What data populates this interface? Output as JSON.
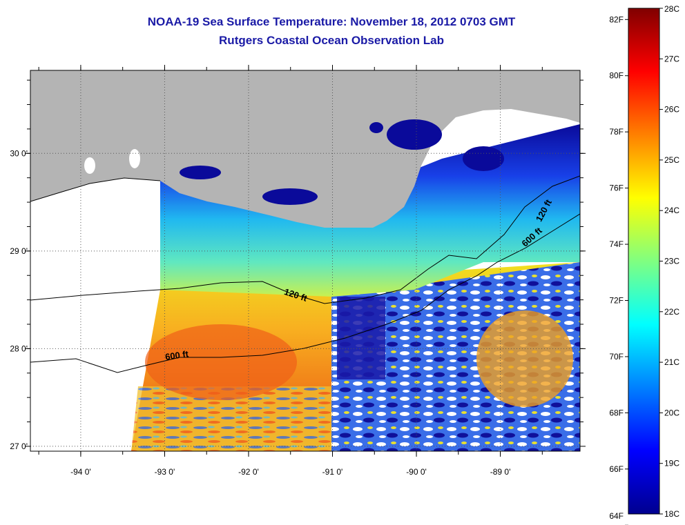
{
  "header": {
    "title": "NOAA-19 Sea Surface Temperature:  November 18, 2012 0703 GMT",
    "subtitle": "Rutgers Coastal Ocean Observation Lab"
  },
  "map": {
    "lon_range": [
      -94.6,
      -88.05
    ],
    "lat_range": [
      26.95,
      30.85
    ],
    "lon_ticks": [
      {
        "value": -94,
        "label": "-94 0'"
      },
      {
        "value": -93,
        "label": "-93 0'"
      },
      {
        "value": -92,
        "label": "-92 0'"
      },
      {
        "value": -91,
        "label": "-91 0'"
      },
      {
        "value": -90,
        "label": "-90 0'"
      },
      {
        "value": -89,
        "label": "-89 0'"
      }
    ],
    "lat_ticks": [
      {
        "value": 30,
        "label": "30 0'"
      },
      {
        "value": 29,
        "label": "29 0'"
      },
      {
        "value": 28,
        "label": "28 0'"
      },
      {
        "value": 27,
        "label": "27 0'"
      }
    ],
    "contour_labels": [
      {
        "text": "120 ft",
        "lon": -91.45,
        "lat": 28.52,
        "angle": 18
      },
      {
        "text": "600 ft",
        "lon": -92.85,
        "lat": 27.9,
        "angle": -8
      },
      {
        "text": "120 ft",
        "lon": -88.45,
        "lat": 29.4,
        "angle": -62
      },
      {
        "text": "600 ft",
        "lon": -88.6,
        "lat": 29.12,
        "angle": -42
      }
    ],
    "colors": {
      "land": "#b4b4b4",
      "nodata": "#ffffff",
      "frame": "#000000"
    }
  },
  "colorbar": {
    "f_labels": [
      {
        "value": 82,
        "label": "82F"
      },
      {
        "value": 80,
        "label": "80F"
      },
      {
        "value": 78,
        "label": "78F"
      },
      {
        "value": 76,
        "label": "76F"
      },
      {
        "value": 74,
        "label": "74F"
      },
      {
        "value": 72,
        "label": "72F"
      },
      {
        "value": 70,
        "label": "70F"
      },
      {
        "value": 68,
        "label": "68F"
      },
      {
        "value": 66,
        "label": "66F"
      },
      {
        "value": 64,
        "label": "64F"
      }
    ],
    "c_labels": [
      {
        "value": 28,
        "label": "28C"
      },
      {
        "value": 27,
        "label": "27C"
      },
      {
        "value": 26,
        "label": "26C"
      },
      {
        "value": 25,
        "label": "25C"
      },
      {
        "value": 24,
        "label": "24C"
      },
      {
        "value": 23,
        "label": "23C"
      },
      {
        "value": 22,
        "label": "22C"
      },
      {
        "value": 21,
        "label": "21C"
      },
      {
        "value": 20,
        "label": "20C"
      },
      {
        "value": 19,
        "label": "19C"
      },
      {
        "value": 18,
        "label": "18C"
      }
    ],
    "range_c": [
      18,
      28
    ],
    "stops": [
      "#00008f",
      "#0000ff",
      "#0080ff",
      "#00ffff",
      "#80ff80",
      "#ffff00",
      "#ff8000",
      "#ff0000",
      "#800000"
    ]
  }
}
